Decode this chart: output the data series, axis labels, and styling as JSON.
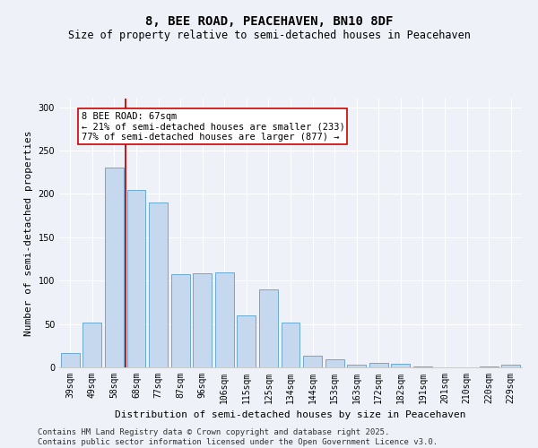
{
  "title": "8, BEE ROAD, PEACEHAVEN, BN10 8DF",
  "subtitle": "Size of property relative to semi-detached houses in Peacehaven",
  "xlabel": "Distribution of semi-detached houses by size in Peacehaven",
  "ylabel": "Number of semi-detached properties",
  "categories": [
    "39sqm",
    "49sqm",
    "58sqm",
    "68sqm",
    "77sqm",
    "87sqm",
    "96sqm",
    "106sqm",
    "115sqm",
    "125sqm",
    "134sqm",
    "144sqm",
    "153sqm",
    "163sqm",
    "172sqm",
    "182sqm",
    "191sqm",
    "201sqm",
    "210sqm",
    "220sqm",
    "229sqm"
  ],
  "values": [
    17,
    52,
    230,
    205,
    190,
    107,
    108,
    110,
    60,
    90,
    52,
    13,
    9,
    3,
    5,
    4,
    1,
    0,
    0,
    1,
    3
  ],
  "bar_color": "#c5d8ed",
  "bar_edge_color": "#6aaad4",
  "property_bin_index": 3,
  "property_line_color": "#cc0000",
  "annotation_text": "8 BEE ROAD: 67sqm\n← 21% of semi-detached houses are smaller (233)\n77% of semi-detached houses are larger (877) →",
  "annotation_box_color": "#ffffff",
  "annotation_box_edge_color": "#cc0000",
  "footer_line1": "Contains HM Land Registry data © Crown copyright and database right 2025.",
  "footer_line2": "Contains public sector information licensed under the Open Government Licence v3.0.",
  "ylim": [
    0,
    310
  ],
  "background_color": "#eef2f8",
  "grid_color": "#ffffff",
  "title_fontsize": 10,
  "subtitle_fontsize": 8.5,
  "axis_label_fontsize": 8,
  "tick_fontsize": 7,
  "footer_fontsize": 6.5,
  "annotation_fontsize": 7.5
}
